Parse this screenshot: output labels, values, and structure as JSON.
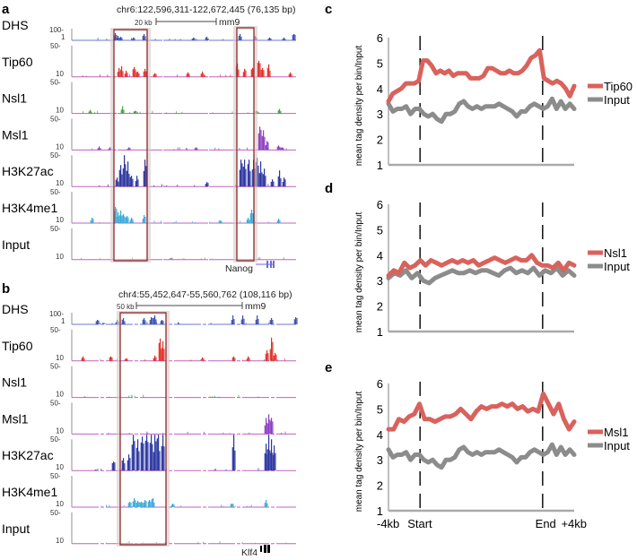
{
  "panels": {
    "a": {
      "label": "a",
      "coords": "chr6:122,596,311-122,672,445 (76,135 bp)",
      "scale": "20 kb",
      "assembly": "mm9",
      "gene": "Nanog",
      "tracks": [
        "DHS",
        "Tip60",
        "Nsl1",
        "Msl1",
        "H3K27ac",
        "H3K4me1",
        "Input"
      ],
      "dhs_scale_top": "100-",
      "dhs_scale_bottom": "1",
      "scale_top": "50-",
      "scale_bottom": "10"
    },
    "b": {
      "label": "b",
      "coords": "chr4:55,452,647-55,560,762 (108,116 bp)",
      "scale": "50 kb",
      "assembly": "mm9",
      "gene": "Klf4",
      "tracks": [
        "DHS",
        "Tip60",
        "Nsl1",
        "Msl1",
        "H3K27ac",
        "H3K4me1",
        "Input"
      ],
      "dhs_scale_top": "100-",
      "dhs_scale_bottom": "1",
      "scale_top": "50-",
      "scale_bottom": "10"
    }
  },
  "colors": {
    "DHS": "#3b4fb0",
    "Tip60": "#e0302a",
    "Nsl1": "#3aa53a",
    "Msl1": "#8a3fc0",
    "H3K27ac": "#2a35a0",
    "H3K4me1": "#3aaad8",
    "Input": "#888888",
    "baseline": "#c060c0",
    "box": "#8b2a2a",
    "signal": "#d9625c",
    "control": "#8c8c8c"
  },
  "chart_data": [
    {
      "type": "line",
      "panel_label": "c",
      "ylabel": "mean tag density per bin/Input",
      "ylim": [
        1,
        6
      ],
      "yticks": [
        "1",
        "2",
        "3",
        "4",
        "5",
        "6"
      ],
      "xlim": [
        0,
        100
      ],
      "markers": {
        "start": 17,
        "end": 83
      },
      "xticks": [],
      "legend": "right",
      "series": [
        {
          "name": "Tip60",
          "values": [
            3.5,
            3.8,
            3.9,
            4.0,
            4.2,
            4.2,
            4.2,
            4.3,
            5.1,
            5.1,
            4.9,
            4.6,
            4.7,
            4.6,
            4.7,
            4.5,
            4.6,
            4.6,
            4.6,
            4.4,
            4.4,
            4.4,
            4.5,
            4.8,
            4.8,
            4.7,
            4.6,
            4.6,
            4.7,
            4.6,
            4.6,
            4.7,
            4.9,
            5.2,
            5.3,
            5.5,
            4.4,
            4.3,
            4.2,
            4.3,
            4.2,
            4.0,
            3.7,
            4.1
          ]
        },
        {
          "name": "Input",
          "values": [
            3.4,
            3.1,
            3.2,
            3.2,
            3.3,
            3.0,
            3.2,
            3.2,
            3.0,
            2.9,
            3.0,
            2.8,
            2.7,
            3.0,
            3.0,
            3.1,
            3.4,
            3.5,
            3.3,
            3.2,
            3.3,
            3.2,
            3.3,
            3.3,
            3.3,
            3.4,
            3.3,
            3.2,
            3.1,
            2.9,
            3.1,
            3.1,
            3.3,
            3.4,
            3.3,
            3.2,
            3.3,
            3.6,
            3.2,
            3.5,
            3.2,
            3.4,
            3.2
          ]
        }
      ]
    },
    {
      "type": "line",
      "panel_label": "d",
      "ylabel": "mean tag density per bin/Input",
      "ylim": [
        1,
        6
      ],
      "yticks": [
        "1",
        "2",
        "3",
        "4",
        "5",
        "6"
      ],
      "xlim": [
        0,
        100
      ],
      "markers": {
        "start": 17,
        "end": 83
      },
      "xticks": [],
      "legend": "right",
      "series": [
        {
          "name": "Nsl1",
          "values": [
            3.2,
            3.4,
            3.3,
            3.7,
            3.5,
            3.6,
            3.8,
            3.6,
            3.8,
            3.7,
            3.6,
            3.7,
            3.8,
            3.7,
            3.8,
            3.7,
            3.8,
            3.6,
            3.7,
            3.8,
            3.9,
            3.8,
            3.7,
            3.8,
            3.9,
            3.8,
            3.8,
            4.0,
            3.7,
            3.6,
            3.6,
            3.5,
            3.7,
            3.4,
            3.7,
            3.6
          ]
        },
        {
          "name": "Input",
          "values": [
            3.1,
            3.3,
            3.2,
            3.4,
            3.1,
            3.3,
            3.0,
            2.9,
            3.1,
            3.2,
            3.3,
            3.4,
            3.3,
            3.3,
            3.4,
            3.3,
            3.4,
            3.4,
            3.3,
            3.2,
            3.4,
            3.5,
            3.3,
            3.4,
            3.3,
            3.5,
            3.2,
            3.4,
            3.3,
            3.5,
            3.2,
            3.4,
            3.2
          ]
        }
      ]
    },
    {
      "type": "line",
      "panel_label": "e",
      "ylabel": "mean tag density per bin/Input",
      "ylim": [
        1,
        6
      ],
      "yticks": [
        "1",
        "2",
        "3",
        "4",
        "5",
        "6"
      ],
      "xlim": [
        0,
        100
      ],
      "markers": {
        "start": 17,
        "end": 83
      },
      "xticks": [
        {
          "label": "-4kb",
          "x": 0
        },
        {
          "label": "Start",
          "x": 17
        },
        {
          "label": "End",
          "x": 83
        },
        {
          "label": "+4kb",
          "x": 100
        }
      ],
      "legend": "right",
      "series": [
        {
          "name": "Msl1",
          "values": [
            4.2,
            4.2,
            4.6,
            4.5,
            4.7,
            4.8,
            5.2,
            4.6,
            4.6,
            4.5,
            4.6,
            4.7,
            4.7,
            4.8,
            5.0,
            4.8,
            4.6,
            4.9,
            5.1,
            5.0,
            5.1,
            5.1,
            5.2,
            5.1,
            5.2,
            5.0,
            5.1,
            4.9,
            5.0,
            4.9,
            5.6,
            5.2,
            4.8,
            5.2,
            4.6,
            4.2,
            4.5
          ]
        },
        {
          "name": "Input",
          "values": [
            3.4,
            3.1,
            3.2,
            3.2,
            3.3,
            3.0,
            3.2,
            3.2,
            3.0,
            2.9,
            3.0,
            2.8,
            2.7,
            3.0,
            3.0,
            3.1,
            3.4,
            3.5,
            3.3,
            3.2,
            3.3,
            3.2,
            3.3,
            3.3,
            3.3,
            3.4,
            3.3,
            3.2,
            3.1,
            2.9,
            3.1,
            3.1,
            3.3,
            3.4,
            3.3,
            3.2,
            3.3,
            3.6,
            3.2,
            3.5,
            3.2,
            3.4,
            3.2
          ]
        }
      ]
    }
  ]
}
